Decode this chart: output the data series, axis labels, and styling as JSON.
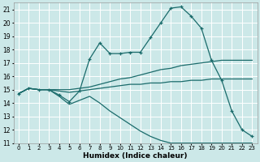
{
  "xlabel": "Humidex (Indice chaleur)",
  "xlim": [
    -0.5,
    23.5
  ],
  "ylim": [
    11,
    21.5
  ],
  "yticks": [
    11,
    12,
    13,
    14,
    15,
    16,
    17,
    18,
    19,
    20,
    21
  ],
  "xticks": [
    0,
    1,
    2,
    3,
    4,
    5,
    6,
    7,
    8,
    9,
    10,
    11,
    12,
    13,
    14,
    15,
    16,
    17,
    18,
    19,
    20,
    21,
    22,
    23
  ],
  "bg_color": "#cce8e8",
  "grid_color": "#ffffff",
  "line_color": "#1a6b6b",
  "lines": [
    {
      "x": [
        0,
        1,
        2,
        3,
        4,
        5,
        6,
        7,
        8,
        9,
        10,
        11,
        12,
        13,
        14,
        15,
        16,
        17,
        18,
        19,
        20,
        21,
        22,
        23
      ],
      "y": [
        14.7,
        15.1,
        15.0,
        15.0,
        14.6,
        14.1,
        14.9,
        17.3,
        18.5,
        17.7,
        17.7,
        17.8,
        17.8,
        18.9,
        20.0,
        21.1,
        21.2,
        20.5,
        19.6,
        17.2,
        15.7,
        13.4,
        12.0,
        11.5
      ],
      "style": "-",
      "marker": "+"
    },
    {
      "x": [
        0,
        1,
        2,
        3,
        4,
        5,
        6,
        7,
        8,
        9,
        10,
        11,
        12,
        13,
        14,
        15,
        16,
        17,
        18,
        19,
        20,
        21,
        22,
        23
      ],
      "y": [
        14.7,
        15.1,
        15.0,
        15.0,
        15.0,
        15.0,
        15.1,
        15.2,
        15.4,
        15.6,
        15.8,
        15.9,
        16.1,
        16.3,
        16.5,
        16.6,
        16.8,
        16.9,
        17.0,
        17.1,
        17.2,
        17.2,
        17.2,
        17.2
      ],
      "style": "-",
      "marker": null
    },
    {
      "x": [
        0,
        1,
        2,
        3,
        4,
        5,
        6,
        7,
        8,
        9,
        10,
        11,
        12,
        13,
        14,
        15,
        16,
        17,
        18,
        19,
        20,
        21,
        22,
        23
      ],
      "y": [
        14.7,
        15.1,
        15.0,
        15.0,
        14.9,
        14.8,
        14.9,
        15.0,
        15.1,
        15.2,
        15.3,
        15.4,
        15.4,
        15.5,
        15.5,
        15.6,
        15.6,
        15.7,
        15.7,
        15.8,
        15.8,
        15.8,
        15.8,
        15.8
      ],
      "style": "-",
      "marker": null
    },
    {
      "x": [
        0,
        1,
        2,
        3,
        4,
        5,
        6,
        7,
        8,
        9,
        10,
        11,
        12,
        13,
        14,
        15,
        16,
        17,
        18,
        19,
        20,
        21,
        22,
        23
      ],
      "y": [
        14.7,
        15.1,
        15.0,
        15.0,
        14.5,
        13.9,
        14.2,
        14.5,
        14.0,
        13.4,
        12.9,
        12.4,
        11.9,
        11.5,
        11.2,
        11.0,
        11.0,
        11.0,
        11.0,
        11.0,
        11.0,
        11.0,
        11.0,
        11.0
      ],
      "style": "-",
      "marker": null
    }
  ]
}
